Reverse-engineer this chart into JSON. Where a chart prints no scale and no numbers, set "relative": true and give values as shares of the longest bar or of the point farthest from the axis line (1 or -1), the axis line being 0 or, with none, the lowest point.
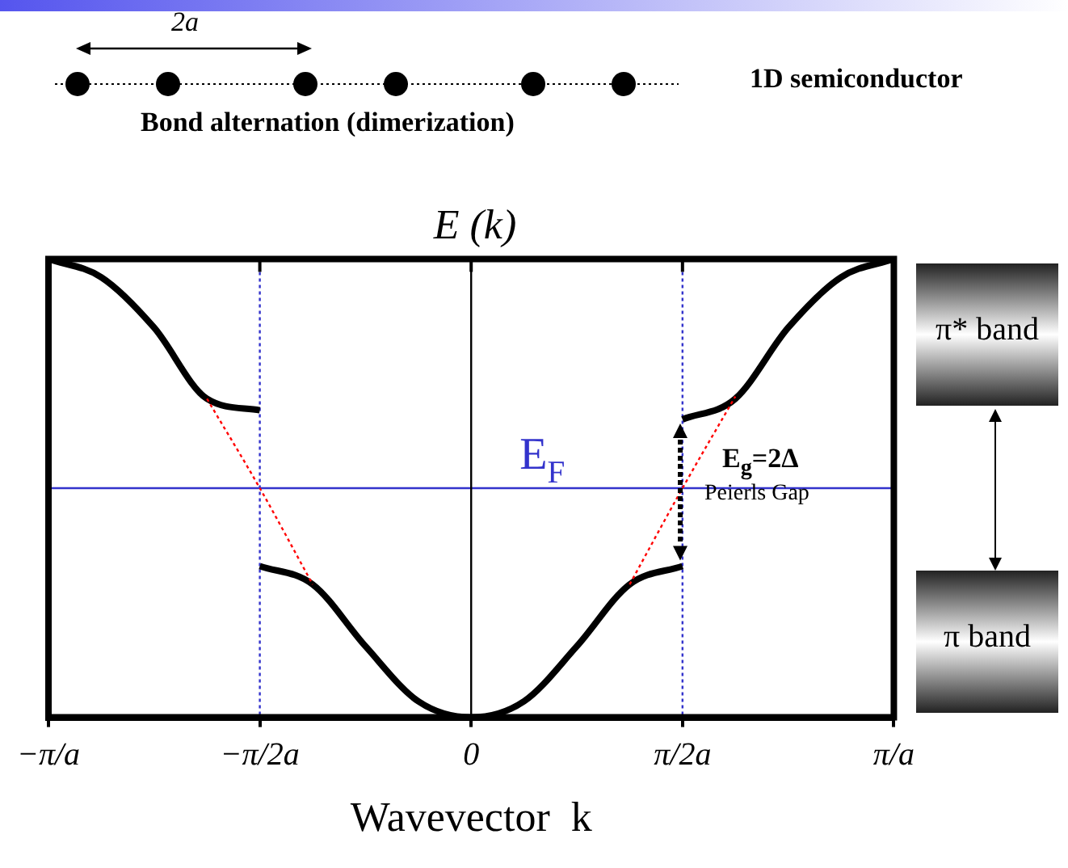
{
  "chart_data": {
    "type": "line",
    "title": "E (k)",
    "xlabel": "Wavevector  k",
    "relative": true,
    "categories": [
      "−π/a",
      null,
      null,
      null,
      "−π/2a",
      null,
      null,
      null,
      "0",
      null,
      null,
      null,
      "π/2a",
      null,
      null,
      null,
      "π/a"
    ],
    "series": [
      {
        "color": "#000000",
        "values": [
          1,
          0.96,
          0.85,
          0.695,
          0.67,
          null,
          null,
          null,
          null,
          null,
          null,
          null,
          null,
          null,
          null,
          null,
          null
        ]
      },
      {
        "color": "#000000",
        "values": [
          null,
          null,
          null,
          null,
          0.33,
          0.29,
          0.155,
          0.035,
          0,
          0.035,
          0.155,
          0.29,
          0.33,
          null,
          null,
          null,
          null
        ]
      },
      {
        "color": "#000000",
        "values": [
          null,
          null,
          null,
          null,
          null,
          null,
          null,
          null,
          null,
          null,
          null,
          null,
          0.65,
          0.695,
          0.85,
          0.96,
          1
        ]
      },
      {
        "color": "#ff0000",
        "line_style": "dotted",
        "values": [
          null,
          null,
          null,
          0.695,
          0.5,
          0.29,
          null,
          null,
          null,
          null,
          null,
          null,
          null,
          null,
          null,
          null,
          null
        ]
      },
      {
        "color": "#ff0000",
        "line_style": "dotted",
        "values": [
          null,
          null,
          null,
          null,
          null,
          null,
          null,
          null,
          null,
          null,
          null,
          0.29,
          0.5,
          0.7,
          null,
          null,
          null
        ]
      }
    ],
    "marker": "none",
    "grid": false,
    "legend": false,
    "ref_lines": [
      {
        "axis": "y",
        "value": 0.5,
        "label": "E$_{F}$",
        "color": "#3333cc"
      },
      {
        "axis": "x",
        "value": "0",
        "color": "#000000"
      },
      {
        "axis": "x",
        "value": "−π/2a",
        "color": "#3333cc",
        "line_style": "dotted"
      },
      {
        "axis": "x",
        "value": "π/2a",
        "color": "#3333cc",
        "line_style": "dotted"
      }
    ],
    "annotations": [
      "2a",
      "1D semiconductor",
      "Bond alternation (dimerization)",
      "π* band",
      "π band",
      "E$_{g}$=2Δ",
      "Peierls Gap"
    ]
  }
}
